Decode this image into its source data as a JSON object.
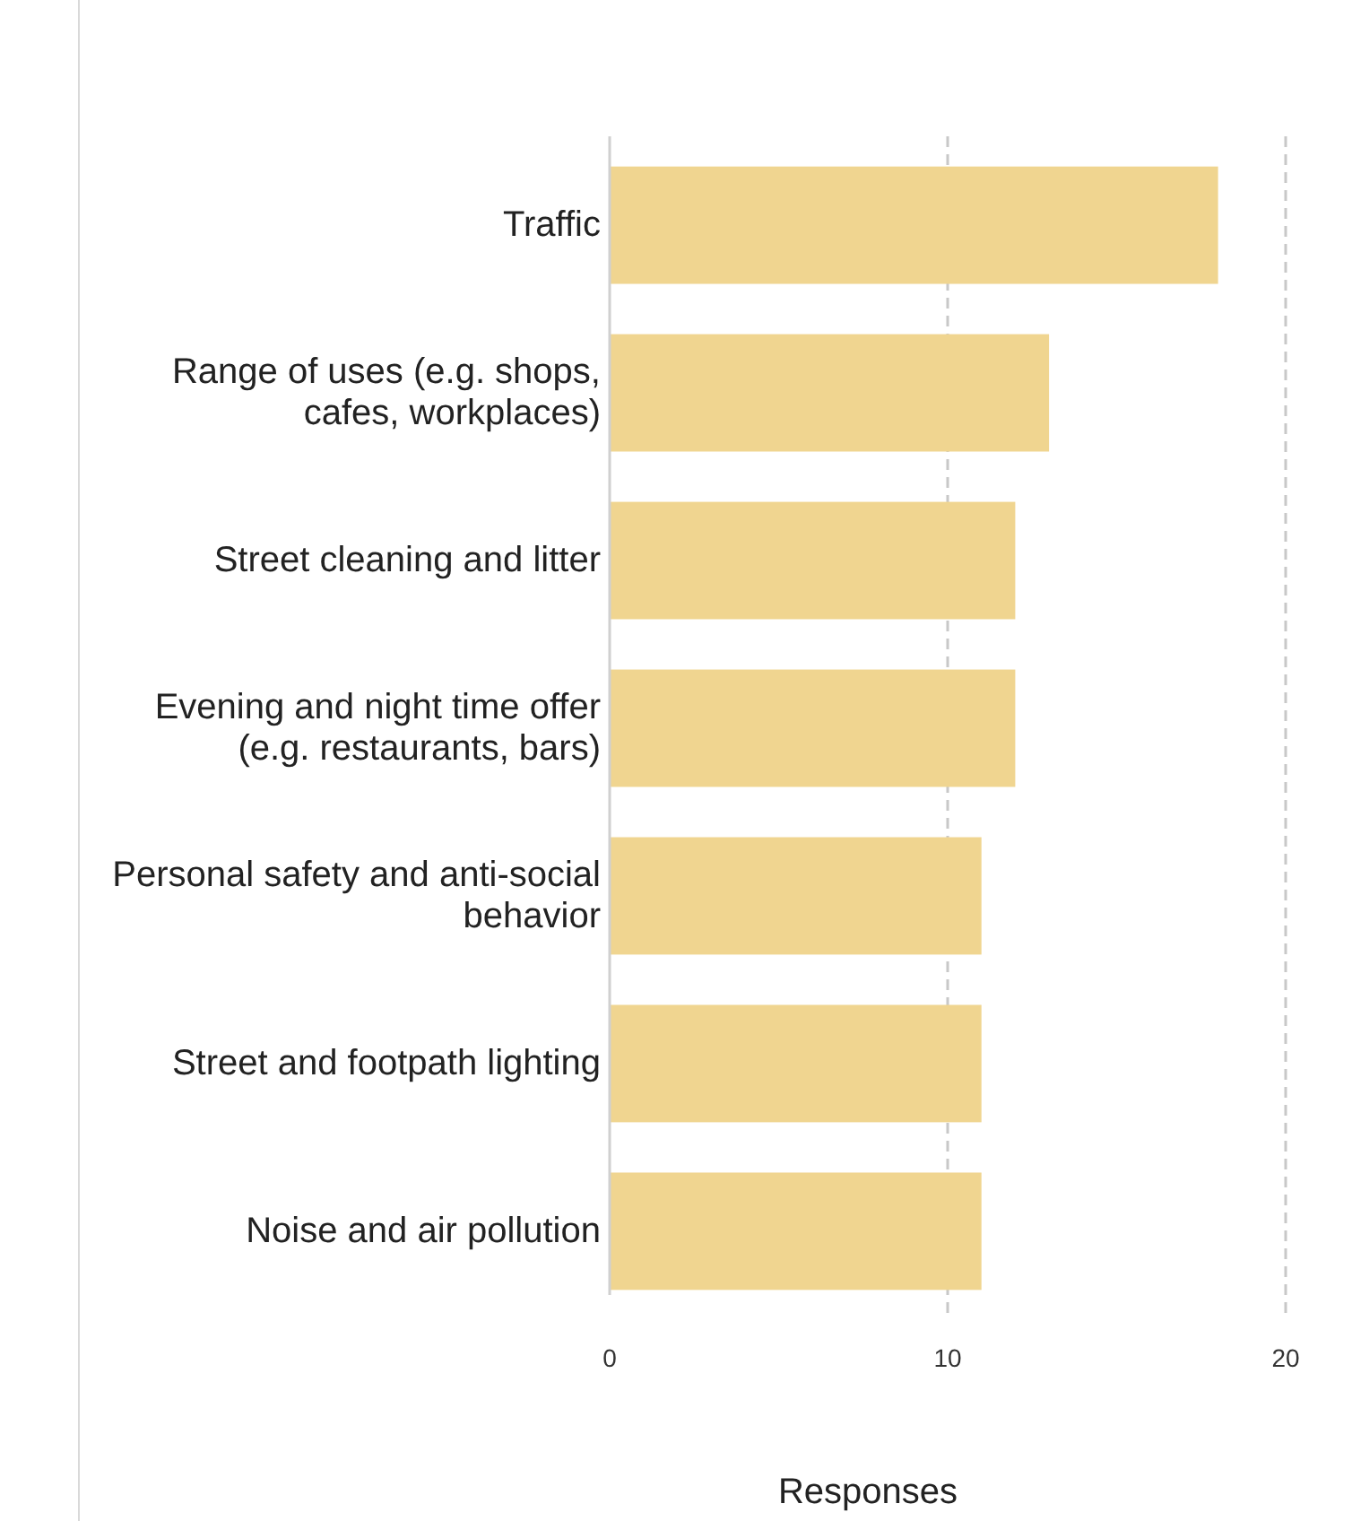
{
  "chart_data": {
    "type": "bar",
    "orientation": "horizontal",
    "xlabel": "Responses",
    "categories": [
      "Traffic",
      "Range of uses (e.g. shops, cafes, workplaces)",
      "Street cleaning and litter",
      "Evening and night time offer (e.g. restaurants, bars)",
      "Personal safety and anti-social behavior",
      "Street and footpath lighting",
      "Noise and air pollution"
    ],
    "values": [
      18,
      13,
      12,
      12,
      11,
      11,
      11
    ],
    "color": "#f0d590",
    "xlim": [
      0,
      20
    ],
    "xticks": [
      0,
      10,
      20
    ],
    "grid": "x"
  }
}
